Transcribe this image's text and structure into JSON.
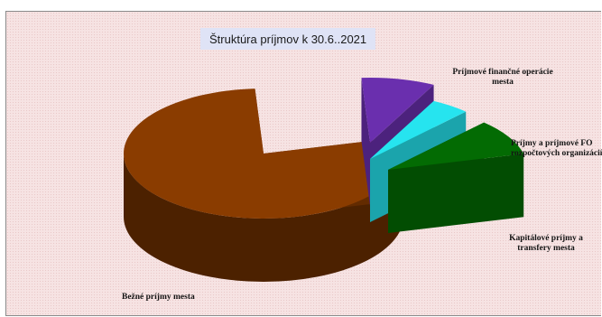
{
  "chart_data": {
    "type": "pie",
    "title": "Štruktúra príjmov k 30.6..2021",
    "slices": [
      {
        "label": [
          "Bežné príjmy mesta"
        ],
        "value": 78.0,
        "color": "#8a3c00",
        "exploded": false
      },
      {
        "label": [
          "Príjmové  finančné operácie",
          "mesta"
        ],
        "value": 8.5,
        "color": "#6a2fae",
        "exploded": true
      },
      {
        "label": [
          "Príjmy  a príjmové FO",
          "rozpočtových  organizácií"
        ],
        "value": 4.5,
        "color": "#26e4ef",
        "exploded": true
      },
      {
        "label": [
          "Kapitálové príjmy  a",
          "transfery  mesta"
        ],
        "value": 9.0,
        "color": "#036b03",
        "exploded": true
      }
    ],
    "legend": "none",
    "grid": false
  }
}
